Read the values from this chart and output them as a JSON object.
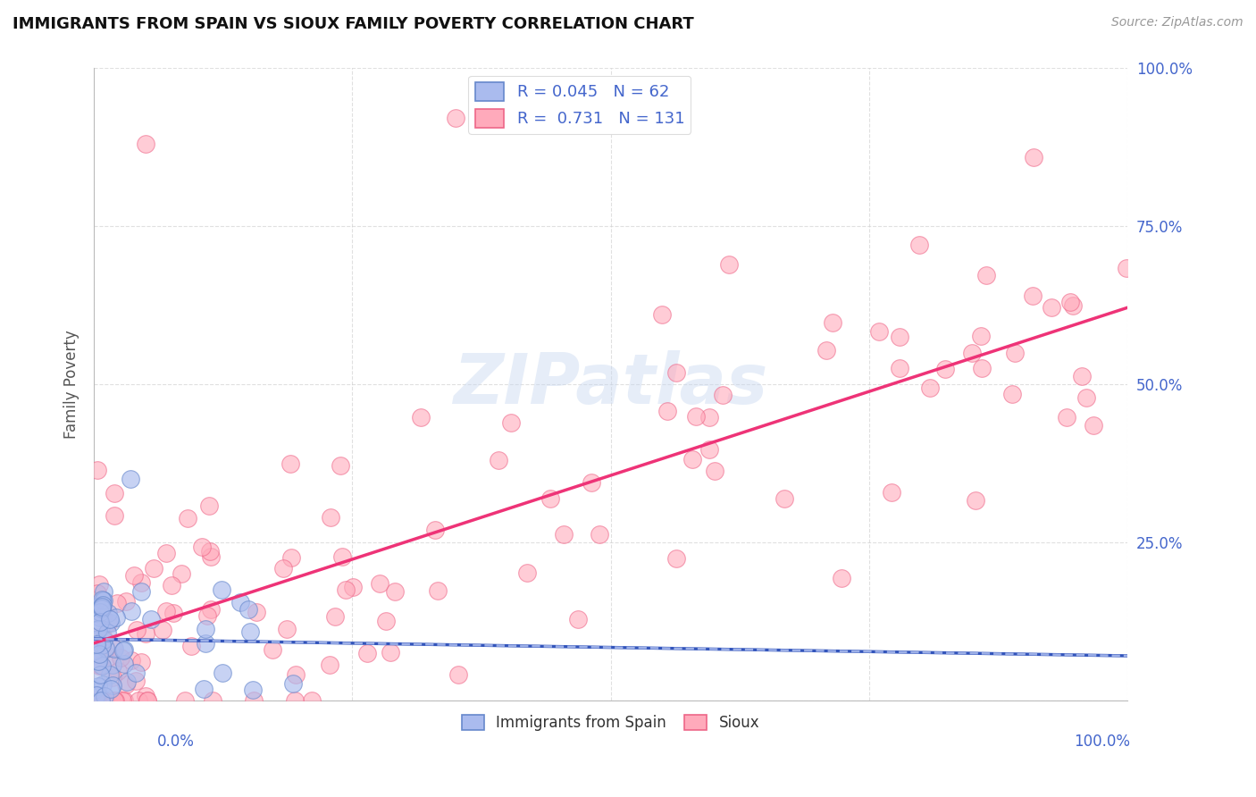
{
  "title": "IMMIGRANTS FROM SPAIN VS SIOUX FAMILY POVERTY CORRELATION CHART",
  "source": "Source: ZipAtlas.com",
  "ylabel": "Family Poverty",
  "legend1_label": "Immigrants from Spain",
  "legend1_R": "0.045",
  "legend1_N": "62",
  "legend2_label": "Sioux",
  "legend2_R": "0.731",
  "legend2_N": "131",
  "watermark_text": "ZIPatlas",
  "background_color": "#ffffff",
  "grid_color": "#cccccc",
  "blue_line_color": "#3355bb",
  "pink_line_color": "#ee3377",
  "blue_scatter_fill": "#aabbee",
  "blue_scatter_edge": "#6688cc",
  "pink_scatter_fill": "#ffaabb",
  "pink_scatter_edge": "#ee6688",
  "title_color": "#111111",
  "source_color": "#999999",
  "axis_label_color": "#4466cc",
  "ylabel_color": "#555555"
}
